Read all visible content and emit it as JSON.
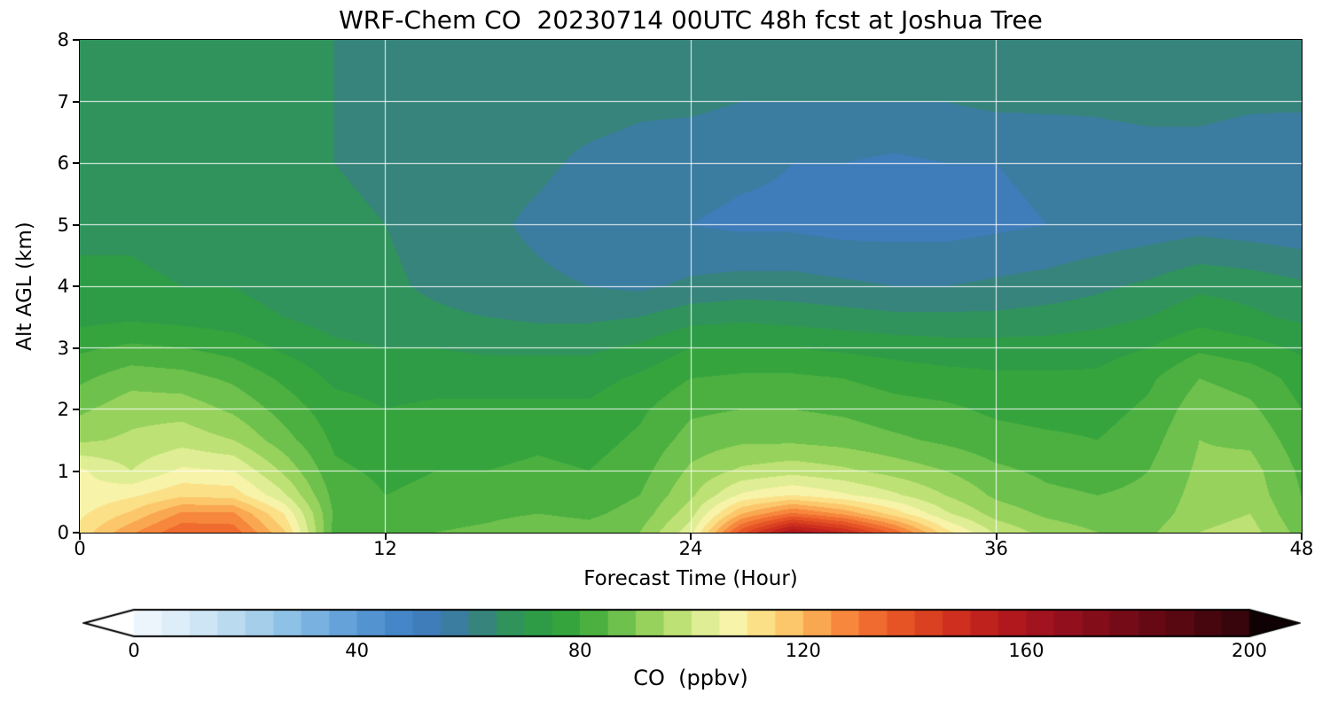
{
  "title": "WRF-Chem CO  20230714 00UTC 48h fcst at Joshua Tree",
  "xlabel": "Forecast Time (Hour)",
  "ylabel": "Alt AGL (km)",
  "colorbar": {
    "label": "CO  (ppbv)",
    "ticks": [
      0,
      40,
      80,
      120,
      160,
      200
    ],
    "body_min": 0,
    "body_max": 200,
    "level_step_ppbv": 5,
    "under_color": "#ffffff",
    "over_color": "#100204"
  },
  "axes": {
    "xlim": [
      0,
      48
    ],
    "ylim": [
      0,
      8
    ],
    "x_ticks": [
      0,
      12,
      24,
      36,
      48
    ],
    "y_ticks": [
      0,
      1,
      2,
      3,
      4,
      5,
      6,
      7,
      8
    ],
    "grid_x": [
      12,
      24,
      36
    ],
    "grid_y": [
      1,
      2,
      3,
      4,
      5,
      6,
      7
    ],
    "grid_color": "#ffffff"
  },
  "colormap": [
    [
      -10,
      "#ffffff"
    ],
    [
      0,
      "#f3f9fd"
    ],
    [
      10,
      "#d7eaf7"
    ],
    [
      20,
      "#b0d5ee"
    ],
    [
      30,
      "#83bae3"
    ],
    [
      40,
      "#5a9ad5"
    ],
    [
      48,
      "#4285c6"
    ],
    [
      55,
      "#3d78b4"
    ],
    [
      62,
      "#37837f"
    ],
    [
      68,
      "#2f9459"
    ],
    [
      74,
      "#2e9e41"
    ],
    [
      80,
      "#3aa83a"
    ],
    [
      86,
      "#62bc48"
    ],
    [
      92,
      "#93d05b"
    ],
    [
      98,
      "#c2e377"
    ],
    [
      104,
      "#e9f29e"
    ],
    [
      108,
      "#f9f3ab"
    ],
    [
      112,
      "#fbe28a"
    ],
    [
      118,
      "#fcc468"
    ],
    [
      124,
      "#f99d49"
    ],
    [
      130,
      "#f47733"
    ],
    [
      138,
      "#e55225"
    ],
    [
      146,
      "#d2331e"
    ],
    [
      155,
      "#b81b1c"
    ],
    [
      165,
      "#99101e"
    ],
    [
      180,
      "#6e0a16"
    ],
    [
      195,
      "#3f050c"
    ],
    [
      210,
      "#100204"
    ]
  ],
  "chart_data": {
    "type": "heatmap",
    "title": "WRF-Chem CO  20230714 00UTC 48h fcst at Joshua Tree",
    "xlabel": "Forecast Time (Hour)",
    "ylabel": "Alt AGL (km)",
    "units": "ppbv",
    "level_step_ppbv": 5,
    "x_hours": [
      0,
      2,
      4,
      6,
      8,
      10,
      12,
      14,
      16,
      18,
      20,
      22,
      24,
      26,
      28,
      30,
      32,
      34,
      36,
      38,
      40,
      42,
      44,
      46,
      48
    ],
    "y_km": [
      0,
      0.3,
      0.6,
      1,
      1.5,
      2,
      2.5,
      3,
      3.5,
      4,
      5,
      6,
      7,
      8
    ],
    "values_ppbv": [
      [
        112,
        124,
        134,
        133,
        116,
        83,
        82,
        85,
        86,
        88,
        87,
        90,
        103,
        138,
        160,
        150,
        133,
        112,
        99,
        93,
        90,
        89,
        95,
        97,
        88
      ],
      [
        109,
        116,
        126,
        126,
        110,
        84,
        81,
        83,
        84,
        85,
        84,
        87,
        98,
        120,
        131,
        124,
        113,
        101,
        93,
        89,
        87,
        87,
        93,
        95,
        86
      ],
      [
        106,
        109,
        114,
        113,
        101,
        83,
        80,
        81,
        82,
        83,
        82,
        85,
        94,
        106,
        110,
        106,
        101,
        95,
        89,
        86,
        85,
        86,
        92,
        93,
        85
      ],
      [
        106,
        100,
        106,
        105,
        94,
        81,
        79,
        80,
        80,
        81,
        80,
        83,
        91,
        96,
        98,
        96,
        93,
        90,
        86,
        84,
        83,
        85,
        91,
        92,
        84
      ],
      [
        94,
        96,
        98,
        95,
        87,
        79,
        77,
        78,
        78,
        79,
        78,
        81,
        87,
        89,
        89,
        88,
        86,
        84,
        82,
        81,
        80,
        83,
        90,
        89,
        82
      ],
      [
        89,
        93,
        93,
        89,
        83,
        77,
        75,
        76,
        76,
        76,
        76,
        79,
        84,
        85,
        85,
        84,
        82,
        81,
        79,
        78,
        78,
        81,
        88,
        86,
        80
      ],
      [
        84,
        88,
        87,
        84,
        79,
        74,
        73,
        73,
        73,
        73,
        73,
        76,
        80,
        81,
        81,
        80,
        78,
        77,
        76,
        76,
        76,
        79,
        85,
        83,
        78
      ],
      [
        79,
        81,
        80,
        78,
        74,
        71,
        70,
        70,
        69,
        69,
        69,
        71,
        75,
        75,
        75,
        74,
        73,
        72,
        72,
        72,
        73,
        75,
        79,
        77,
        74
      ],
      [
        73,
        74,
        73,
        72,
        70,
        68,
        67,
        66,
        65,
        64,
        64,
        65,
        68,
        69,
        68,
        67,
        66,
        66,
        66,
        67,
        68,
        70,
        73,
        71,
        69
      ],
      [
        71,
        71,
        70,
        70,
        68,
        67,
        66,
        64,
        62,
        61,
        60,
        59,
        61,
        62,
        62,
        61,
        60,
        60,
        61,
        62,
        64,
        66,
        69,
        68,
        66
      ],
      [
        69,
        69,
        68,
        68,
        67,
        66,
        65,
        63,
        61,
        59,
        57,
        56,
        55,
        54,
        54,
        53,
        53,
        53,
        54,
        55,
        56,
        57,
        58,
        57,
        56
      ],
      [
        68,
        68,
        67,
        67,
        66,
        65,
        64,
        63,
        62,
        61,
        59,
        58,
        57,
        56,
        55,
        55,
        54,
        55,
        55,
        56,
        57,
        57,
        57,
        56,
        55
      ],
      [
        67,
        67,
        66,
        66,
        65,
        65,
        64,
        64,
        63,
        62,
        62,
        61,
        61,
        60,
        60,
        60,
        60,
        60,
        61,
        61,
        61,
        62,
        62,
        61,
        61
      ],
      [
        66,
        66,
        66,
        65,
        65,
        65,
        64,
        64,
        64,
        63,
        63,
        63,
        63,
        62,
        62,
        62,
        62,
        62,
        63,
        63,
        63,
        63,
        63,
        63,
        63
      ]
    ]
  }
}
